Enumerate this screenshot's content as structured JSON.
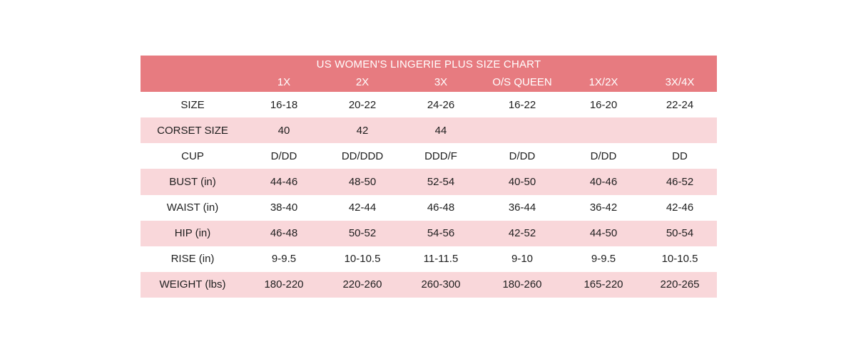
{
  "chart": {
    "title": "US WOMEN'S LINGERIE PLUS SIZE CHART",
    "columns": [
      "",
      "1X",
      "2X",
      "3X",
      "O/S QUEEN",
      "1X/2X",
      "3X/4X"
    ],
    "rows": [
      {
        "label": "SIZE",
        "values": [
          "16-18",
          "20-22",
          "24-26",
          "16-22",
          "16-20",
          "22-24"
        ]
      },
      {
        "label": "CORSET SIZE",
        "values": [
          "40",
          "42",
          "44",
          "",
          "",
          ""
        ]
      },
      {
        "label": "CUP",
        "values": [
          "D/DD",
          "DD/DDD",
          "DDD/F",
          "D/DD",
          "D/DD",
          "DD"
        ]
      },
      {
        "label": "BUST (in)",
        "values": [
          "44-46",
          "48-50",
          "52-54",
          "40-50",
          "40-46",
          "46-52"
        ]
      },
      {
        "label": "WAIST (in)",
        "values": [
          "38-40",
          "42-44",
          "46-48",
          "36-44",
          "36-42",
          "42-46"
        ]
      },
      {
        "label": "HIP (in)",
        "values": [
          "46-48",
          "50-52",
          "54-56",
          "42-52",
          "44-50",
          "50-54"
        ]
      },
      {
        "label": "RISE (in)",
        "values": [
          "9-9.5",
          "10-10.5",
          "11-11.5",
          "9-10",
          "9-9.5",
          "10-10.5"
        ]
      },
      {
        "label": "WEIGHT (lbs)",
        "values": [
          "180-220",
          "220-260",
          "260-300",
          "180-260",
          "165-220",
          "220-265"
        ]
      }
    ]
  },
  "colors": {
    "header": "#e77b80",
    "stripe": "#f9d7da",
    "text": "#1e1e1e"
  }
}
